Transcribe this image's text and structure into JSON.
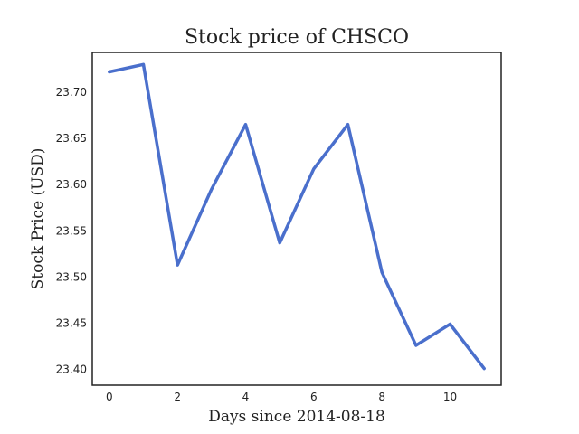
{
  "chart_data": {
    "type": "line",
    "title": "Stock price of CHSCO",
    "xlabel": "Days since 2014-08-18",
    "ylabel": "Stock Price (USD)",
    "xlim": [
      -0.5,
      11.5
    ],
    "ylim": [
      23.383,
      23.743
    ],
    "xticks": [
      0,
      2,
      4,
      6,
      8,
      10
    ],
    "xtick_labels": [
      "0",
      "2",
      "4",
      "6",
      "8",
      "10"
    ],
    "yticks": [
      23.4,
      23.45,
      23.5,
      23.55,
      23.6,
      23.65,
      23.7
    ],
    "ytick_labels": [
      "23.40",
      "23.45",
      "23.50",
      "23.55",
      "23.60",
      "23.65",
      "23.70"
    ],
    "grid": false,
    "legend": "none",
    "series": [
      {
        "color": "#4a6fcc",
        "x": [
          0,
          1,
          2,
          3,
          4,
          5,
          6,
          7,
          8,
          9,
          10,
          11
        ],
        "y": [
          23.722,
          23.73,
          23.513,
          23.595,
          23.665,
          23.537,
          23.617,
          23.665,
          23.505,
          23.426,
          23.449,
          23.401
        ]
      }
    ]
  }
}
